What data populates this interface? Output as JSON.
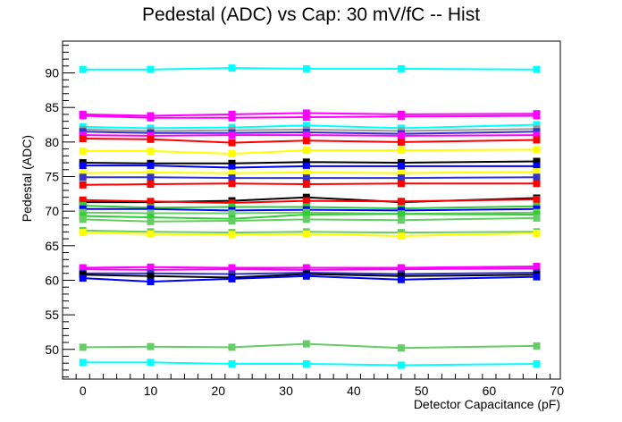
{
  "chart_data": {
    "type": "line",
    "title": "Pedestal (ADC) vs Cap: 30 mV/fC -- Hist",
    "xlabel": "Detector Capacitance (pF)",
    "ylabel": "Pedestal (ADC)",
    "xlim": [
      -3,
      70.5
    ],
    "ylim": [
      45.7,
      94.6
    ],
    "xticks": [
      0,
      10,
      20,
      30,
      40,
      50,
      60,
      70
    ],
    "yticks": [
      50,
      55,
      60,
      65,
      70,
      75,
      80,
      85,
      90
    ],
    "x": [
      0,
      10,
      22,
      33,
      47,
      67
    ],
    "series": [
      {
        "color": "#00ffff",
        "values": [
          90.5,
          90.5,
          90.7,
          90.6,
          90.6,
          90.5
        ]
      },
      {
        "color": "#ff00ff",
        "values": [
          84.0,
          83.8,
          84.0,
          84.2,
          84.0,
          84.1
        ]
      },
      {
        "color": "#ff00ff",
        "values": [
          83.8,
          83.5,
          83.5,
          83.6,
          83.7,
          83.8
        ]
      },
      {
        "color": "#00ffff",
        "values": [
          82.2,
          82.0,
          82.1,
          82.4,
          82.0,
          82.5
        ]
      },
      {
        "color": "#999999",
        "values": [
          81.8,
          81.6,
          81.7,
          81.8,
          81.6,
          81.9
        ]
      },
      {
        "color": "#3333cc",
        "values": [
          81.5,
          81.3,
          81.3,
          81.4,
          81.2,
          81.5
        ]
      },
      {
        "color": "#ff00ff",
        "values": [
          81.0,
          80.9,
          81.0,
          81.0,
          80.9,
          81.0
        ]
      },
      {
        "color": "#ff0000",
        "values": [
          80.5,
          80.4,
          79.9,
          80.2,
          80.0,
          80.3
        ]
      },
      {
        "color": "#ffff00",
        "values": [
          78.7,
          78.7,
          78.3,
          78.8,
          78.8,
          78.9
        ]
      },
      {
        "color": "#000000",
        "values": [
          77.0,
          76.9,
          76.9,
          77.1,
          77.0,
          77.2
        ]
      },
      {
        "color": "#0000ff",
        "values": [
          76.6,
          76.6,
          76.3,
          76.5,
          76.5,
          76.5
        ]
      },
      {
        "color": "#ffff00",
        "values": [
          75.5,
          75.6,
          75.5,
          75.6,
          75.5,
          75.7
        ]
      },
      {
        "color": "#3333cc",
        "values": [
          74.9,
          74.9,
          74.8,
          74.8,
          74.8,
          74.9
        ]
      },
      {
        "color": "#ff0000",
        "values": [
          73.8,
          73.9,
          74.0,
          73.9,
          74.0,
          74.0
        ]
      },
      {
        "color": "#000000",
        "values": [
          71.3,
          71.3,
          71.5,
          72.0,
          71.3,
          71.9
        ]
      },
      {
        "color": "#ff0000",
        "values": [
          71.6,
          71.4,
          71.2,
          71.5,
          71.4,
          71.7
        ]
      },
      {
        "color": "#33cc33",
        "values": [
          70.8,
          70.5,
          70.6,
          70.6,
          70.4,
          70.7
        ]
      },
      {
        "color": "#0000ff",
        "values": [
          70.3,
          70.3,
          70.1,
          70.2,
          70.1,
          70.3
        ]
      },
      {
        "color": "#66cc66",
        "values": [
          69.8,
          69.7,
          69.7,
          69.8,
          69.6,
          69.8
        ]
      },
      {
        "color": "#33cc33",
        "values": [
          69.3,
          69.1,
          68.9,
          69.5,
          69.6,
          69.5
        ]
      },
      {
        "color": "#66cc66",
        "values": [
          68.8,
          68.5,
          68.6,
          68.8,
          68.7,
          69.0
        ]
      },
      {
        "color": "#66cc66",
        "values": [
          67.2,
          67.0,
          66.9,
          67.0,
          66.9,
          67.0
        ]
      },
      {
        "color": "#ffff00",
        "values": [
          66.9,
          66.7,
          66.6,
          66.7,
          66.4,
          66.8
        ]
      },
      {
        "color": "#ff00ff",
        "values": [
          61.8,
          61.9,
          61.8,
          61.8,
          61.8,
          62.0
        ]
      },
      {
        "color": "#ff00ff",
        "values": [
          61.6,
          61.5,
          61.6,
          61.5,
          61.6,
          61.7
        ]
      },
      {
        "color": "#3333cc",
        "values": [
          61.0,
          61.0,
          60.9,
          61.1,
          60.9,
          61.1
        ]
      },
      {
        "color": "#000000",
        "values": [
          60.8,
          60.6,
          60.4,
          60.9,
          60.6,
          60.8
        ]
      },
      {
        "color": "#0000ff",
        "values": [
          60.3,
          59.8,
          60.2,
          60.6,
          60.1,
          60.5
        ]
      },
      {
        "color": "#66cc66",
        "values": [
          50.3,
          50.4,
          50.3,
          50.8,
          50.2,
          50.5
        ]
      },
      {
        "color": "#00ffff",
        "values": [
          48.1,
          48.1,
          47.9,
          47.9,
          47.7,
          47.9
        ]
      }
    ]
  }
}
